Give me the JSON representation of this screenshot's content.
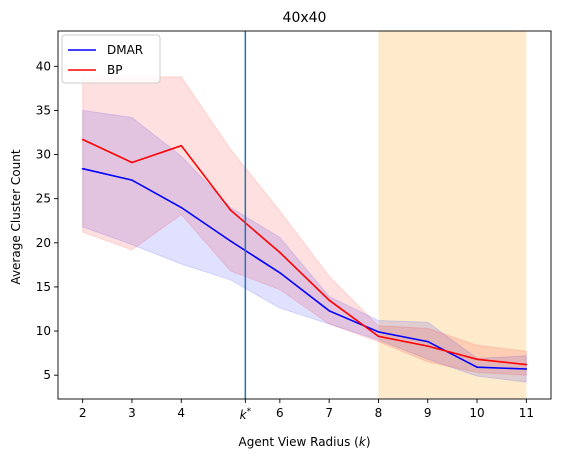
{
  "chart_data": {
    "type": "line",
    "title": "40x40",
    "xlabel": "Agent View Radius ($k$)",
    "ylabel": "Average Cluster Count",
    "xlim": [
      1.5,
      11.5
    ],
    "ylim": [
      2.3,
      44
    ],
    "xticks": [
      2,
      3,
      4,
      5.3,
      6,
      7,
      8,
      9,
      10,
      11
    ],
    "xtick_labels": [
      "2",
      "3",
      "4",
      "k*",
      "6",
      "7",
      "8",
      "9",
      "10",
      "11"
    ],
    "yticks": [
      5,
      10,
      15,
      20,
      25,
      30,
      35,
      40
    ],
    "x": [
      2,
      3,
      4,
      5,
      6,
      7,
      8,
      9,
      10,
      11
    ],
    "series": [
      {
        "name": "DMAR",
        "color": "#0000ff",
        "values": [
          28.4,
          27.1,
          24.0,
          20.2,
          16.6,
          12.3,
          9.9,
          8.8,
          5.9,
          5.7
        ],
        "band_low": [
          21.8,
          19.8,
          17.6,
          15.8,
          12.6,
          10.8,
          9.0,
          6.8,
          4.9,
          4.2
        ],
        "band_high": [
          35.0,
          34.2,
          29.8,
          24.0,
          20.6,
          13.9,
          11.2,
          11.0,
          6.9,
          7.2
        ]
      },
      {
        "name": "BP",
        "color": "#ff0000",
        "values": [
          31.7,
          29.1,
          31.0,
          23.7,
          18.9,
          13.5,
          9.4,
          8.3,
          6.8,
          6.2
        ],
        "band_low": [
          21.2,
          19.2,
          23.2,
          16.8,
          14.7,
          10.8,
          8.8,
          6.5,
          5.3,
          5.0
        ],
        "band_high": [
          38.8,
          38.8,
          38.8,
          30.6,
          23.6,
          16.2,
          10.6,
          10.3,
          8.4,
          7.7
        ]
      }
    ],
    "vline": {
      "x": 5.3,
      "color": "#1f77b4"
    },
    "shaded_region": {
      "x_start": 8,
      "x_end": 11,
      "color": "#fdebcc"
    },
    "legend": {
      "placement": "top-left",
      "entries": [
        "DMAR",
        "BP"
      ]
    },
    "grid": false
  }
}
